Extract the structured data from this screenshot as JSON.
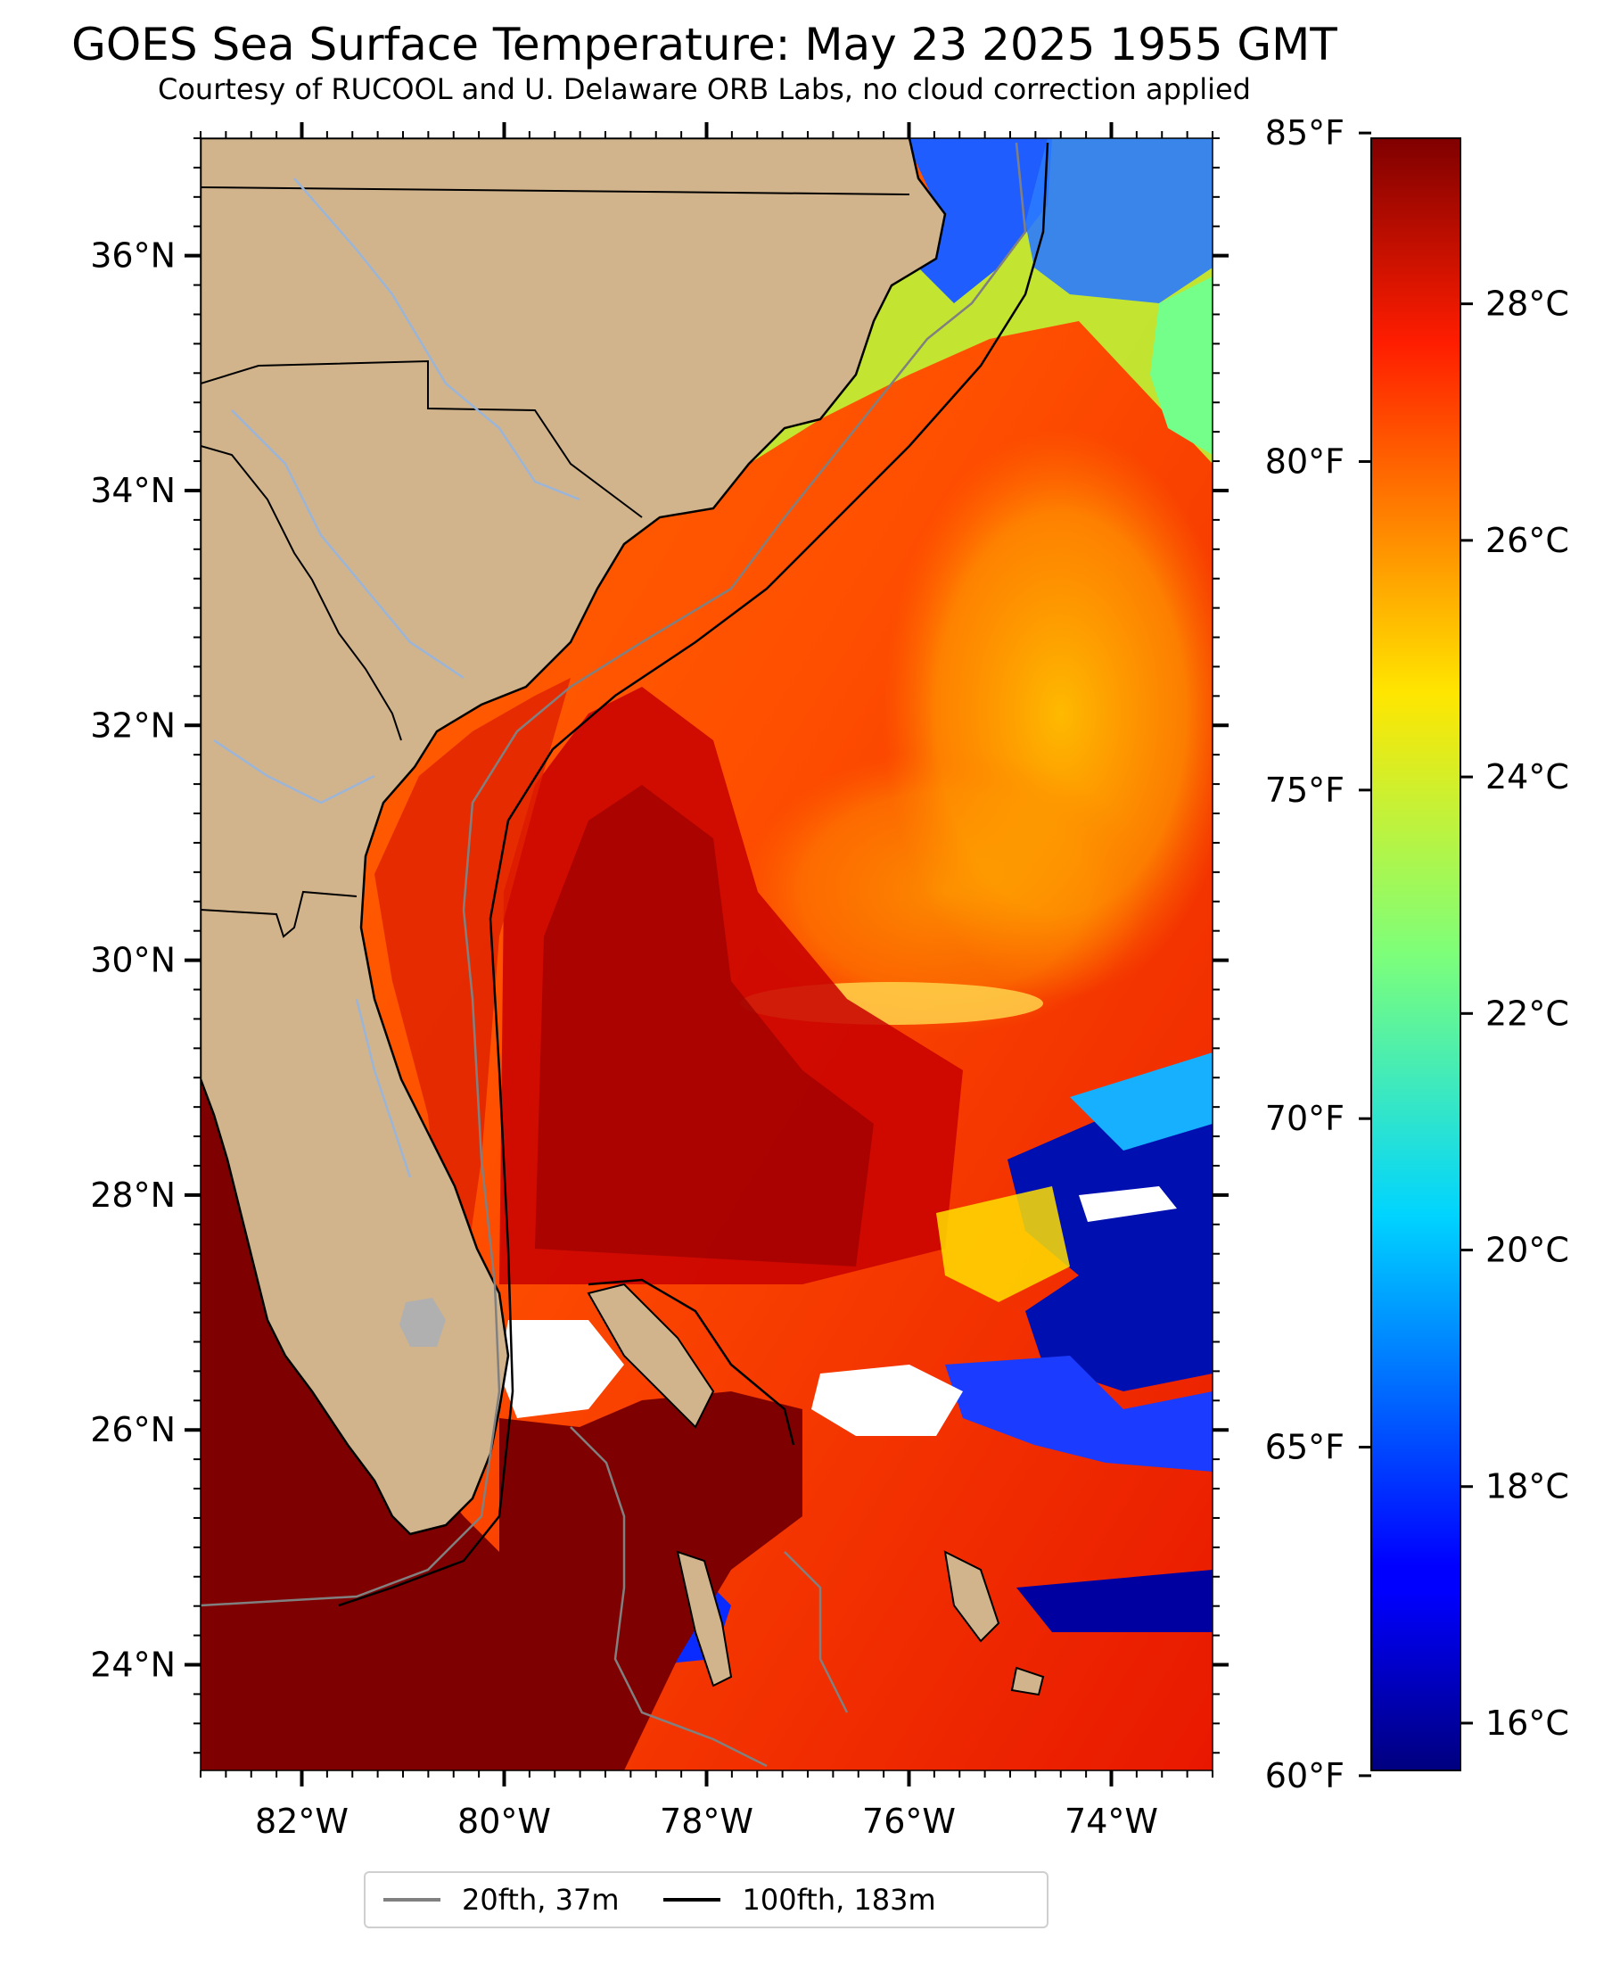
{
  "title": "GOES Sea Surface Temperature: May 23 2025 1955 GMT",
  "subtitle": "Courtesy of RUCOOL and U. Delaware ORB Labs, no cloud correction applied",
  "map": {
    "extent": {
      "lon_min": -83,
      "lon_max": -73,
      "lat_min": 23.1,
      "lat_max": 37.0
    },
    "lat_labels": [
      "36°N",
      "34°N",
      "32°N",
      "30°N",
      "28°N",
      "26°N",
      "24°N"
    ],
    "lon_labels": [
      "82°W",
      "80°W",
      "78°W",
      "76°W",
      "74°W"
    ],
    "colors": {
      "land": "#d2b48c",
      "no_data": "#ffffff",
      "rivers": "#9bb5d8",
      "borders": "#000000"
    }
  },
  "colorbar": {
    "colormap": "jet",
    "range_c": [
      15.6,
      29.4
    ],
    "range_f": [
      60,
      85
    ],
    "celsius_labels": [
      "28°C",
      "26°C",
      "24°C",
      "22°C",
      "20°C",
      "18°C",
      "16°C"
    ],
    "fahrenheit_labels": [
      "85°F",
      "80°F",
      "75°F",
      "70°F",
      "65°F",
      "60°F"
    ]
  },
  "legend": {
    "items": [
      {
        "label": "20fth, 37m",
        "color": "#808080"
      },
      {
        "label": "100fth, 183m",
        "color": "#000000"
      }
    ]
  }
}
